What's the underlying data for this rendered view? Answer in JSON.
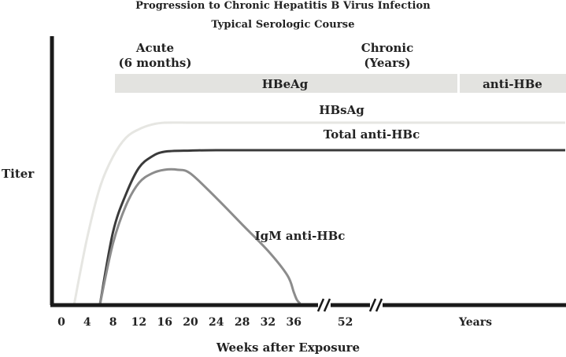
{
  "chart_data": {
    "type": "line",
    "title": "Progression to Chronic Hepatitis B Virus Infection",
    "subtitle": "Typical Serologic Course",
    "xlabel": "Weeks after Exposure",
    "ylabel": "Titer",
    "x_ticks": [
      "0",
      "4",
      "8",
      "12",
      "16",
      "20",
      "24",
      "28",
      "32",
      "36",
      "52"
    ],
    "x_end_label": "Years",
    "x_breaks": [
      "between 36 and 52",
      "after 52"
    ],
    "phases": [
      {
        "label_line1": "Acute",
        "label_line2": "(6 months)"
      },
      {
        "label_line1": "Chronic",
        "label_line2": "(Years)"
      }
    ],
    "bands": [
      {
        "label": "HBeAg",
        "color": "#e3e3e0"
      },
      {
        "label": "anti-HBe",
        "color": "#e3e3e0"
      }
    ],
    "series": [
      {
        "name": "HBsAg",
        "color": "#e6e6e2",
        "points": [
          [
            2,
            0
          ],
          [
            4,
            0.35
          ],
          [
            6,
            0.62
          ],
          [
            8,
            0.78
          ],
          [
            10,
            0.88
          ],
          [
            12,
            0.925
          ],
          [
            14,
            0.95
          ],
          [
            16,
            0.96
          ],
          [
            20,
            0.96
          ],
          [
            24,
            0.96
          ],
          [
            36,
            0.96
          ],
          [
            52,
            0.96
          ],
          [
            80,
            0.96
          ]
        ]
      },
      {
        "name": "Total anti-HBc",
        "color": "#3a3a3a",
        "points": [
          [
            6,
            0
          ],
          [
            8,
            0.38
          ],
          [
            10,
            0.58
          ],
          [
            12,
            0.72
          ],
          [
            14,
            0.78
          ],
          [
            16,
            0.806
          ],
          [
            20,
            0.812
          ],
          [
            24,
            0.814
          ],
          [
            36,
            0.814
          ],
          [
            52,
            0.814
          ],
          [
            80,
            0.814
          ]
        ]
      },
      {
        "name": "IgM anti-HBc",
        "color": "#8c8c8c",
        "points": [
          [
            6,
            0
          ],
          [
            8,
            0.32
          ],
          [
            10,
            0.52
          ],
          [
            12,
            0.64
          ],
          [
            14,
            0.69
          ],
          [
            16,
            0.71
          ],
          [
            18,
            0.71
          ],
          [
            20,
            0.69
          ],
          [
            24,
            0.56
          ],
          [
            28,
            0.42
          ],
          [
            32,
            0.28
          ],
          [
            35,
            0.15
          ],
          [
            36,
            0.06
          ],
          [
            37,
            0.02
          ],
          [
            38,
            0
          ]
        ]
      }
    ],
    "ylim": [
      0,
      1
    ]
  }
}
